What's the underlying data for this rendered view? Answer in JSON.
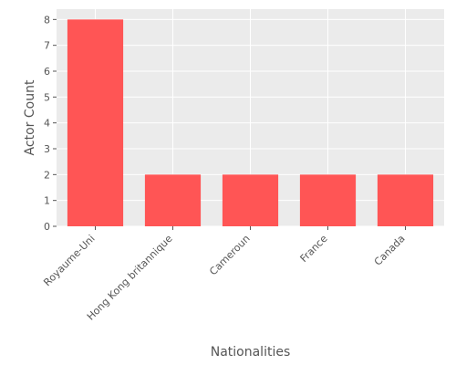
{
  "chart_data": {
    "type": "bar",
    "categories": [
      "Royaume-Uni",
      "Hong Kong britannique",
      "Cameroun",
      "France",
      "Canada"
    ],
    "values": [
      8,
      2,
      2,
      2,
      2
    ],
    "xlabel": "Nationalities",
    "ylabel": "Actor Count",
    "ylim": [
      0,
      8.4
    ],
    "yticks": [
      0,
      1,
      2,
      3,
      4,
      5,
      6,
      7,
      8
    ],
    "grid": true,
    "colors": {
      "bar": "#ff5555",
      "panel": "#ebebeb",
      "grid": "#ffffff"
    }
  }
}
